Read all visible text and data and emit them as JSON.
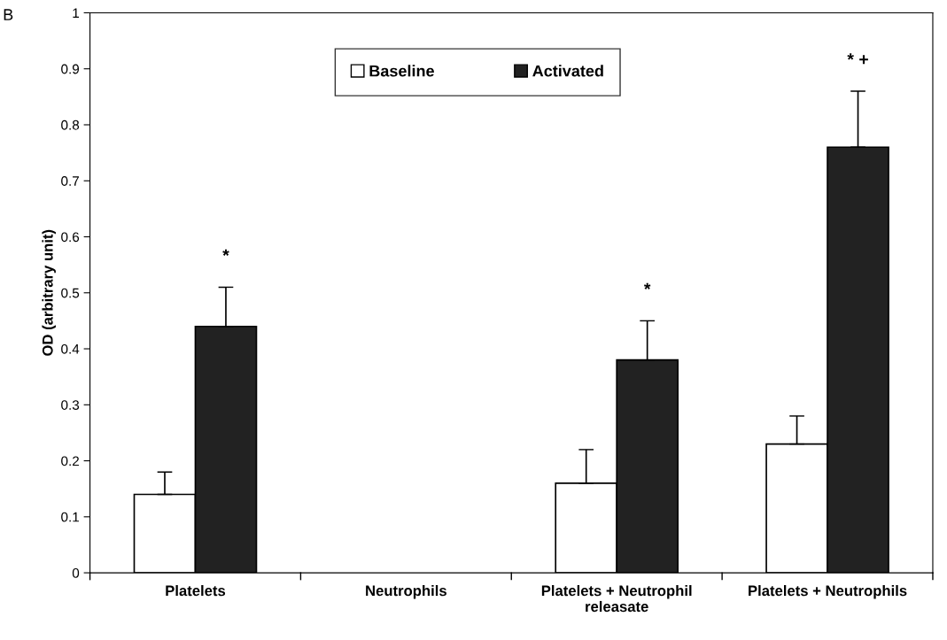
{
  "chart_data": {
    "type": "bar",
    "ylabel": "OD (arbitrary unit)",
    "categories": [
      "Platelets",
      "Neutrophils",
      "Platelets + Neutrophil\nreleasate",
      "Platelets + Neutrophils"
    ],
    "series": [
      {
        "name": "Baseline",
        "color": "#ffffff",
        "values": [
          0.14,
          null,
          0.16,
          0.23
        ],
        "errors": [
          [
            0.14,
            0.18
          ],
          null,
          [
            0.16,
            0.22
          ],
          [
            0.23,
            0.28
          ]
        ]
      },
      {
        "name": "Activated",
        "color": "#222222",
        "values": [
          0.44,
          null,
          0.38,
          0.76
        ],
        "errors": [
          [
            0.44,
            0.51
          ],
          null,
          [
            0.38,
            0.45
          ],
          [
            0.76,
            0.86
          ]
        ]
      }
    ],
    "ylim": [
      0,
      1
    ],
    "yticks": [
      0,
      0.1,
      0.2,
      0.3,
      0.4,
      0.5,
      0.6,
      0.7,
      0.8,
      0.9,
      1
    ],
    "legend": "top",
    "grid": false,
    "annotations": [
      "B",
      "*",
      "*",
      "* +"
    ]
  }
}
